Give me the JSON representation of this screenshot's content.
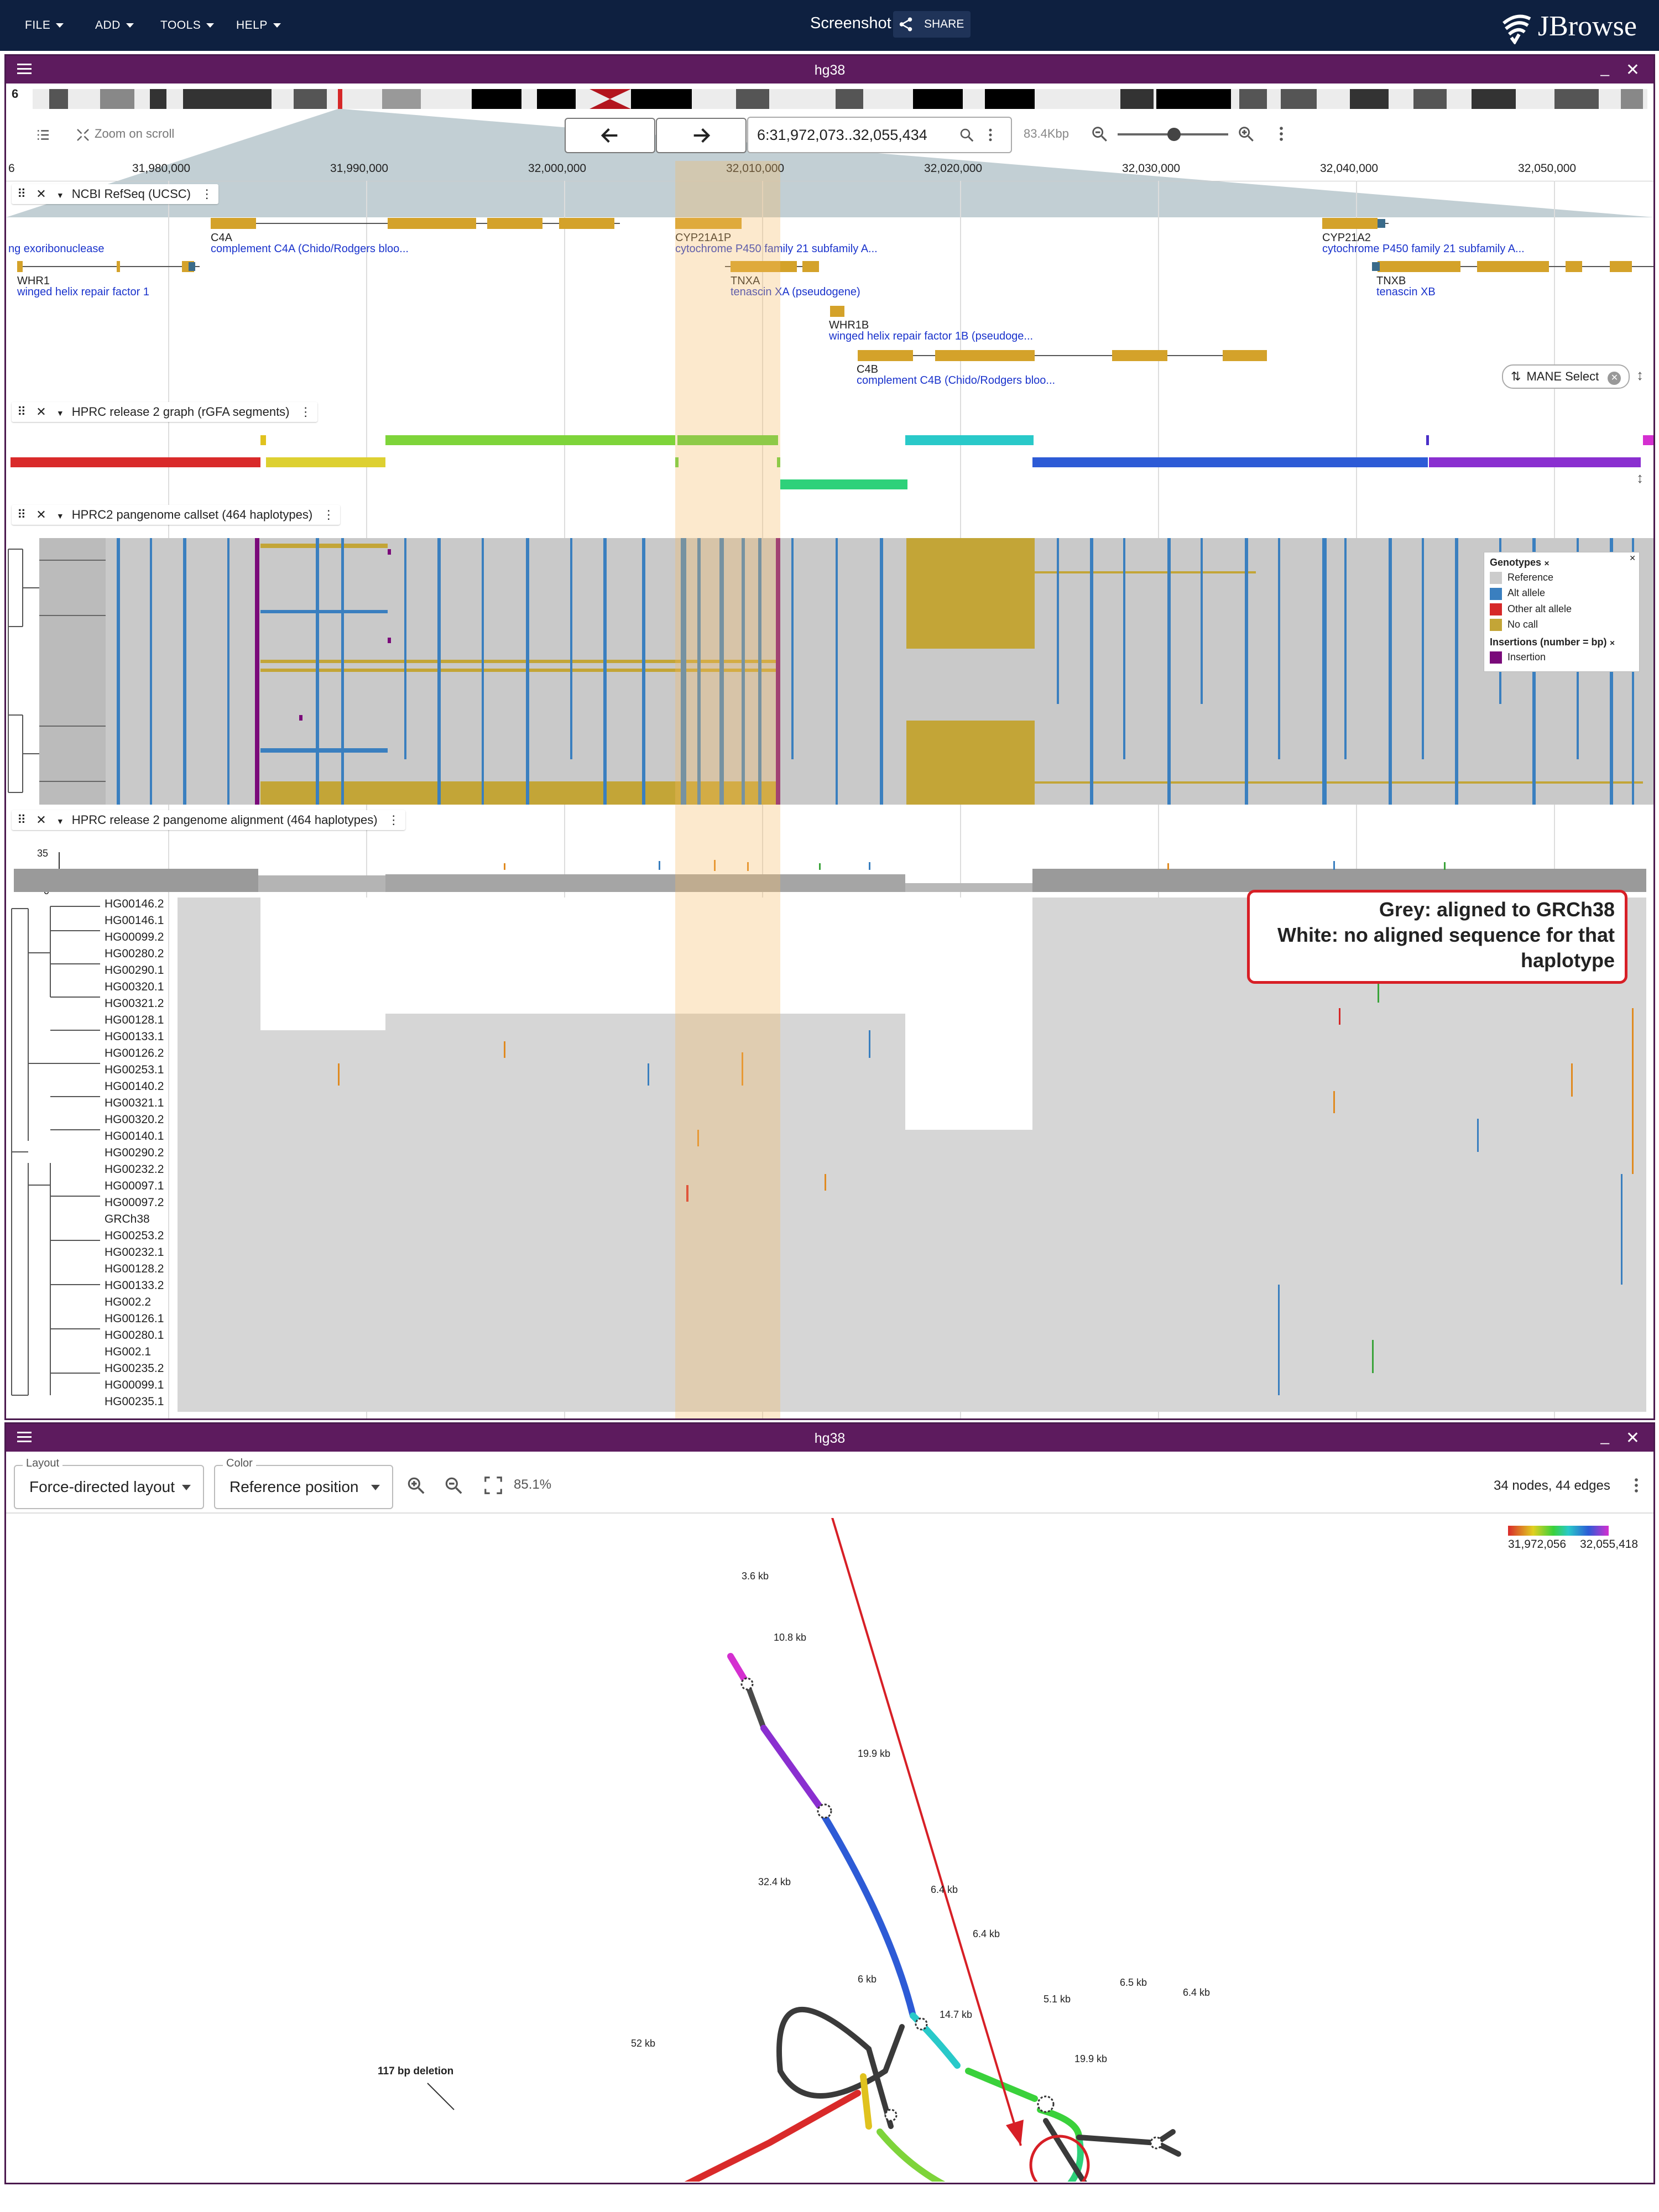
{
  "menubar": {
    "items": [
      "FILE",
      "ADD",
      "TOOLS",
      "HELP"
    ],
    "screenshot_label": "Screenshot",
    "share_label": "SHARE",
    "logo_text": "JBrowse"
  },
  "view1": {
    "title": "hg38",
    "chrom": "6",
    "location": "6:31,972,073..32,055,434",
    "zoom_text": "Zoom on scroll",
    "width_text": "83.4Kbp",
    "ruler_ticks": [
      "31,980,000",
      "31,990,000",
      "32,000,000",
      "32,010,000",
      "32,020,000",
      "32,030,000",
      "32,040,000",
      "32,050,000"
    ],
    "tracks": {
      "refseq": {
        "title": "NCBI RefSeq (UCSC)",
        "mane_label": "MANE Select",
        "genes": [
          {
            "name": "C4A",
            "desc": "complement C4A (Chido/Rodgers bloo..."
          },
          {
            "name": "",
            "desc": "ng exoribonuclease"
          },
          {
            "name": "WHR1",
            "desc": "winged helix repair factor 1"
          },
          {
            "name": "CYP21A1P",
            "desc": "cytochrome P450 family 21 subfamily A..."
          },
          {
            "name": "TNXA",
            "desc": "tenascin XA (pseudogene)"
          },
          {
            "name": "WHR1B",
            "desc": "winged helix repair factor 1B (pseudoge..."
          },
          {
            "name": "C4B",
            "desc": "complement C4B (Chido/Rodgers bloo..."
          },
          {
            "name": "CYP21A2",
            "desc": "cytochrome P450 family 21 subfamily A..."
          },
          {
            "name": "TNXB",
            "desc": "tenascin XB"
          }
        ]
      },
      "graph": {
        "title": "HPRC release 2 graph (rGFA segments)"
      },
      "callset": {
        "title": "HPRC2 pangenome callset (464 haplotypes)",
        "legend": {
          "genotypes_title": "Genotypes",
          "genotypes": [
            {
              "label": "Reference",
              "color": "#cccccc"
            },
            {
              "label": "Alt allele",
              "color": "#3a7fbf"
            },
            {
              "label": "Other alt allele",
              "color": "#d62728"
            },
            {
              "label": "No call",
              "color": "#c3a537"
            }
          ],
          "insertions_title": "Insertions (number = bp)",
          "insertion_label": "Insertion",
          "insertion_color": "#7a0a7a"
        }
      },
      "alignment": {
        "title": "HPRC release 2 pangenome alignment (464 haplotypes)",
        "coverage_max": "35",
        "coverage_min": "0",
        "haplotypes": [
          "HG00146.2",
          "HG00146.1",
          "HG00099.2",
          "HG00280.2",
          "HG00290.1",
          "HG00320.1",
          "HG00321.2",
          "HG00128.1",
          "HG00133.1",
          "HG00126.2",
          "HG00253.1",
          "HG00140.2",
          "HG00321.1",
          "HG00320.2",
          "HG00140.1",
          "HG00290.2",
          "HG00232.2",
          "HG00097.1",
          "HG00097.2",
          "GRCh38",
          "HG00253.2",
          "HG00232.1",
          "HG00128.2",
          "HG00133.2",
          "HG002.2",
          "HG00126.1",
          "HG00280.1",
          "HG002.1",
          "HG00235.2",
          "HG00099.1",
          "HG00235.1"
        ],
        "annotation": [
          "Grey: aligned to GRCh38",
          "White: no aligned sequence for that",
          "haplotype"
        ]
      }
    }
  },
  "view2": {
    "title": "hg38",
    "layout": {
      "label": "Layout",
      "value": "Force-directed layout"
    },
    "color": {
      "label": "Color",
      "value": "Reference position"
    },
    "zoom_pct": "85.1%",
    "stats": "34 nodes, 44 edges",
    "colorbar": {
      "min": "31,972,056",
      "max": "32,055,418"
    },
    "graph_labels": [
      "3.6 kb",
      "10.8 kb",
      "19.9 kb",
      "32.4 kb",
      "6.4 kb",
      "6.4 kb",
      "6 kb",
      "14.7 kb",
      "5.1 kb",
      "6.5 kb",
      "6.4 kb",
      "19.9 kb",
      "52 kb"
    ],
    "deletion_label": "117 bp deletion"
  }
}
